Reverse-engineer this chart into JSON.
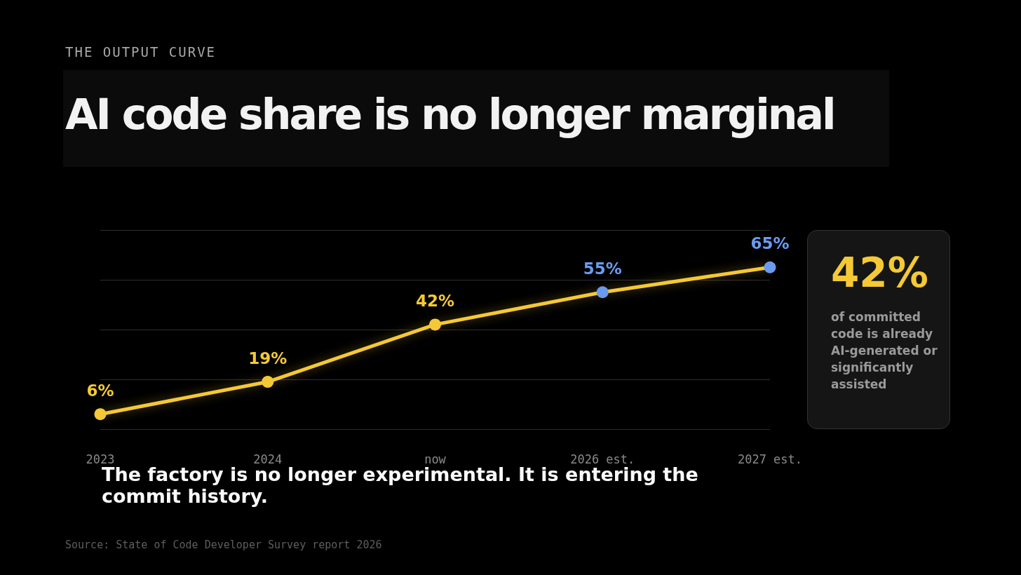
{
  "chart_data": {
    "type": "line",
    "subtitle": "THE OUTPUT CURVE",
    "title": "AI code share is no longer marginal",
    "categories": [
      "2023",
      "2024",
      "now",
      "2026 est.",
      "2027 est."
    ],
    "series": [
      {
        "color": "#f5c935",
        "values": [
          6,
          19,
          42,
          55,
          65
        ],
        "value_labels": [
          "6%",
          "19%",
          "42%",
          "55%",
          "65%"
        ],
        "colors": [
          "#f5c935",
          "#f5c935",
          "#f5c935",
          "#6b9bef",
          "#6b9bef"
        ]
      }
    ],
    "tick_labels": "x",
    "grid": "y",
    "marker": "circle",
    "line_style": "solid",
    "annotations": [
      "42%",
      "of committed code is already AI-generated or significantly assisted",
      "The factory is no longer experimental. It is entering the commit history.",
      "Source: State of Code Developer Survey report 2026"
    ]
  }
}
